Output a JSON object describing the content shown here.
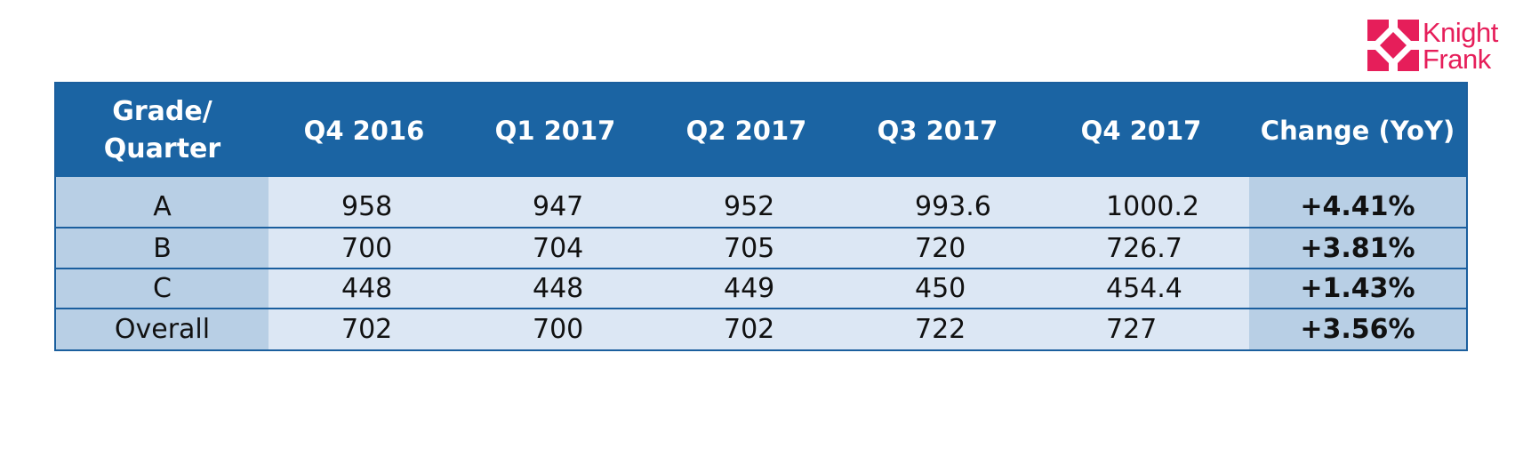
{
  "logo": {
    "line1": "Knight",
    "line2": "Frank",
    "color": "#e61e5a"
  },
  "colors": {
    "header_bg": "#1b64a3",
    "body_bg": "#dce7f4",
    "highlight_bg": "#b8cfe5"
  },
  "chart_data": {
    "type": "table",
    "columns": [
      "Grade/ Quarter",
      "Q4 2016",
      "Q1 2017",
      "Q2 2017",
      "Q3 2017",
      "Q4 2017",
      "Change (YoY)"
    ],
    "header": {
      "grade_line1": "Grade/",
      "grade_line2": "Quarter"
    },
    "rows": [
      {
        "grade": "A",
        "values": [
          "958",
          "947",
          "952",
          "993.6",
          "1000.2"
        ],
        "change": "+4.41%"
      },
      {
        "grade": "B",
        "values": [
          "700",
          "704",
          "705",
          "720",
          "726.7"
        ],
        "change": "+3.81%"
      },
      {
        "grade": "C",
        "values": [
          "448",
          "448",
          "449",
          "450",
          "454.4"
        ],
        "change": "+1.43%"
      },
      {
        "grade": "Overall",
        "values": [
          "702",
          "700",
          "702",
          "722",
          "727"
        ],
        "change": "+3.56%"
      }
    ]
  }
}
